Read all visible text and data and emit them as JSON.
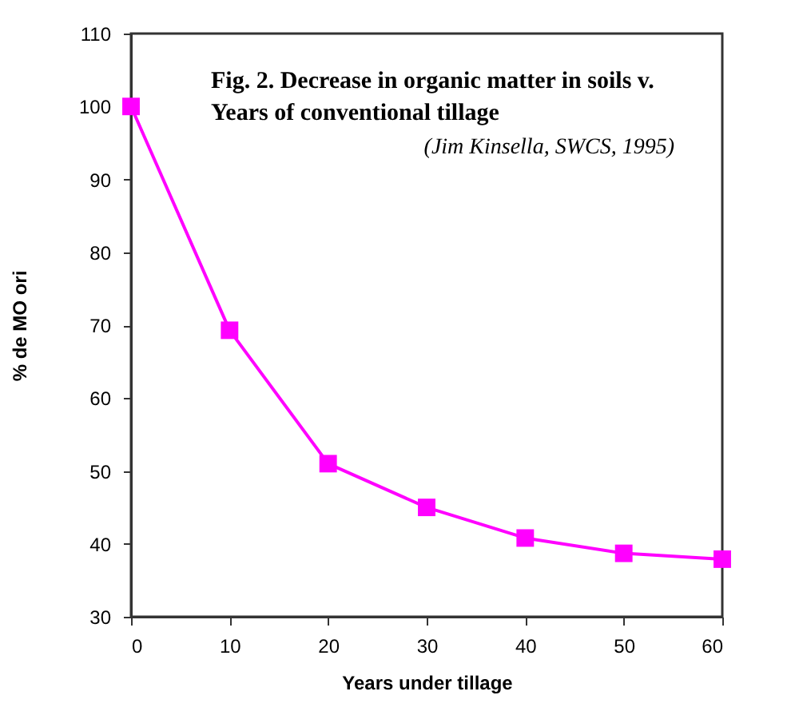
{
  "chart_data": {
    "type": "line",
    "title": "Fig. 2. Decrease in organic matter in soils v.\nYears of conventional tillage",
    "annotations": [
      "(Jim Kinsella, SWCS, 1995)"
    ],
    "xlabel": "Years under tillage",
    "ylabel": "% de MO ori",
    "x": [
      0,
      10,
      20,
      30,
      40,
      50,
      60
    ],
    "series": [
      {
        "color": "#ff00ff",
        "values": [
          100,
          69.3,
          51,
          45,
          40.8,
          38.7,
          37.9
        ]
      }
    ],
    "xlim": [
      0,
      60
    ],
    "xticks": [
      0,
      10,
      20,
      30,
      40,
      50,
      60
    ],
    "ylim": [
      30,
      110
    ],
    "yticks": [
      30,
      40,
      50,
      60,
      70,
      80,
      90,
      100,
      110
    ],
    "marker": "square",
    "line_style": "solid",
    "grid": false,
    "legend": false
  }
}
